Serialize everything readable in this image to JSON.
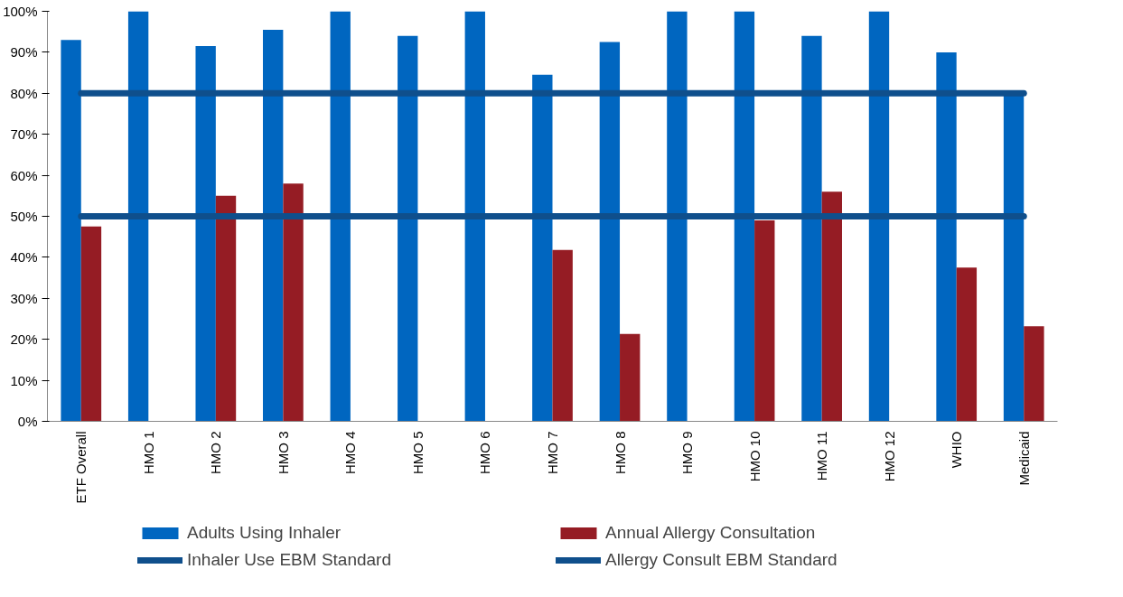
{
  "chart_data": {
    "type": "bar",
    "categories": [
      "ETF Overall",
      "HMO 1",
      "HMO 2",
      "HMO 3",
      "HMO 4",
      "HMO 5",
      "HMO 6",
      "HMO 7",
      "HMO 8",
      "HMO 9",
      "HMO 10",
      "HMO 11",
      "HMO 12",
      "WHIO",
      "Medicaid"
    ],
    "series": [
      {
        "name": "Adults Using Inhaler",
        "color": "#0066c0",
        "values": [
          93,
          100,
          91.5,
          95.5,
          100,
          94,
          100,
          84.5,
          92.5,
          100,
          100,
          94,
          100,
          90,
          80
        ]
      },
      {
        "name": "Annual Allergy Consultation",
        "color": "#951c24",
        "values": [
          47.5,
          null,
          55,
          58,
          null,
          null,
          null,
          41.8,
          21.3,
          null,
          49,
          56,
          null,
          37.5,
          23.2
        ]
      },
      {
        "name": "Inhaler Use EBM Standard",
        "type": "line",
        "color": "#0f4f8c",
        "values": [
          80,
          80,
          80,
          80,
          80,
          80,
          80,
          80,
          80,
          80,
          80,
          80,
          80,
          80,
          80
        ]
      },
      {
        "name": "Allergy Consult EBM Standard",
        "type": "line",
        "color": "#0f4f8c",
        "values": [
          50,
          50,
          50,
          50,
          50,
          50,
          50,
          50,
          50,
          50,
          50,
          50,
          50,
          50,
          50
        ]
      }
    ],
    "ylim": [
      0,
      100
    ],
    "yticks": [
      {
        "value": 0,
        "label": "0%"
      },
      {
        "value": 10,
        "label": "10%"
      },
      {
        "value": 20,
        "label": "20%"
      },
      {
        "value": 30,
        "label": "30%"
      },
      {
        "value": 40,
        "label": "40%"
      },
      {
        "value": 50,
        "label": "50%"
      },
      {
        "value": 60,
        "label": "60%"
      },
      {
        "value": 70,
        "label": "70%"
      },
      {
        "value": 80,
        "label": "80%"
      },
      {
        "value": 90,
        "label": "90%"
      },
      {
        "value": 100,
        "label": "100%"
      }
    ],
    "grid": false,
    "legend": "bottom"
  }
}
